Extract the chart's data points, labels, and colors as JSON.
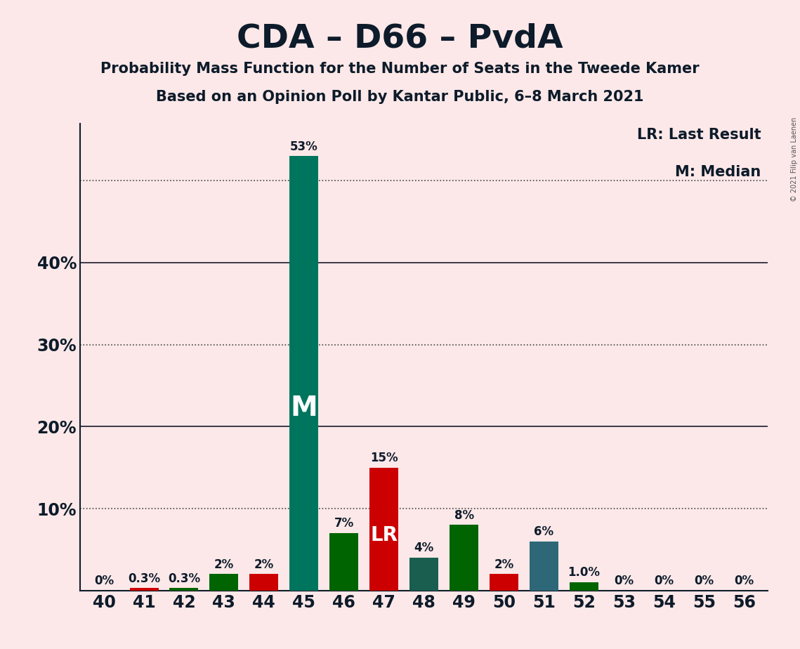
{
  "title": "CDA – D66 – PvdA",
  "subtitle1": "Probability Mass Function for the Number of Seats in the Tweede Kamer",
  "subtitle2": "Based on an Opinion Poll by Kantar Public, 6–8 March 2021",
  "copyright": "© 2021 Filip van Laenen",
  "legend_lr": "LR: Last Result",
  "legend_m": "M: Median",
  "background_color": "#fce8e8",
  "seats": [
    40,
    41,
    42,
    43,
    44,
    45,
    46,
    47,
    48,
    49,
    50,
    51,
    52,
    53,
    54,
    55,
    56
  ],
  "probabilities": [
    0.0,
    0.3,
    0.3,
    2.0,
    2.0,
    53.0,
    7.0,
    15.0,
    4.0,
    8.0,
    2.0,
    6.0,
    1.0,
    0.0,
    0.0,
    0.0,
    0.0
  ],
  "prob_labels": [
    "0%",
    "0.3%",
    "0.3%",
    "2%",
    "2%",
    "53%",
    "7%",
    "15%",
    "4%",
    "8%",
    "2%",
    "6%",
    "1.0%",
    "0%",
    "0%",
    "0%",
    "0%"
  ],
  "color_map": {
    "40": "#006400",
    "41": "#cc0000",
    "42": "#006400",
    "43": "#006400",
    "44": "#cc0000",
    "45": "#00755e",
    "46": "#006400",
    "47": "#cc0000",
    "48": "#1a5e50",
    "49": "#006400",
    "50": "#cc0000",
    "51": "#2e6878",
    "52": "#006400",
    "53": "#006400",
    "54": "#006400",
    "55": "#006400",
    "56": "#006400"
  },
  "median_seat": 45,
  "lr_seat": 47,
  "ylim": [
    0,
    57
  ],
  "ytick_positions": [
    0,
    10,
    20,
    30,
    40,
    50
  ],
  "ytick_labels": [
    "",
    "10%",
    "20%",
    "30%",
    "40%",
    ""
  ],
  "grid_yticks": [
    10,
    20,
    30,
    40,
    50
  ],
  "solid_yticks": [
    20,
    40
  ]
}
